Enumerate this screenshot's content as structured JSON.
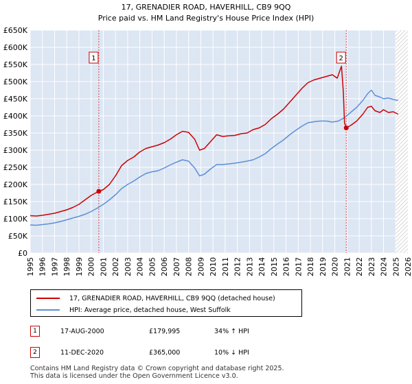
{
  "chart_data": {
    "type": "line",
    "title": "17, GRENADIER ROAD, HAVERHILL, CB9 9QQ",
    "subtitle": "Price paid vs. HM Land Registry's House Price Index (HPI)",
    "xlim": [
      1995,
      2026
    ],
    "ylim": [
      0,
      650000
    ],
    "y_ticks": [
      0,
      50000,
      100000,
      150000,
      200000,
      250000,
      300000,
      350000,
      400000,
      450000,
      500000,
      550000,
      600000,
      650000
    ],
    "y_tick_labels": [
      "£0",
      "£50K",
      "£100K",
      "£150K",
      "£200K",
      "£250K",
      "£300K",
      "£350K",
      "£400K",
      "£450K",
      "£500K",
      "£550K",
      "£600K",
      "£650K"
    ],
    "x_ticks": [
      1995,
      1996,
      1997,
      1998,
      1999,
      2000,
      2001,
      2002,
      2003,
      2004,
      2005,
      2006,
      2007,
      2008,
      2009,
      2010,
      2011,
      2012,
      2013,
      2014,
      2015,
      2016,
      2017,
      2018,
      2019,
      2020,
      2021,
      2022,
      2023,
      2024,
      2025,
      2026
    ],
    "x_tick_labels": [
      "1995",
      "1996",
      "1997",
      "1998",
      "1999",
      "2000",
      "2001",
      "2002",
      "2003",
      "2004",
      "2005",
      "2006",
      "2007",
      "2008",
      "2009",
      "2010",
      "2011",
      "2012",
      "2013",
      "2014",
      "2015",
      "2016",
      "2017",
      "2018",
      "2019",
      "2020",
      "2021",
      "2022",
      "2023",
      "2024",
      "2025",
      "2026"
    ],
    "forecast_start": 2025.0,
    "series": [
      {
        "name": "17, GRENADIER ROAD, HAVERHILL, CB9 9QQ (detached house)",
        "color": "#cc0000",
        "points": [
          [
            1995.0,
            109000
          ],
          [
            1995.5,
            108000
          ],
          [
            1996.0,
            110000
          ],
          [
            1996.5,
            113000
          ],
          [
            1997.0,
            116000
          ],
          [
            1997.5,
            121000
          ],
          [
            1998.0,
            126000
          ],
          [
            1998.5,
            133000
          ],
          [
            1999.0,
            142000
          ],
          [
            1999.5,
            155000
          ],
          [
            2000.0,
            168000
          ],
          [
            2000.63,
            179995
          ],
          [
            2001.0,
            185000
          ],
          [
            2001.5,
            200000
          ],
          [
            2002.0,
            225000
          ],
          [
            2002.5,
            255000
          ],
          [
            2003.0,
            270000
          ],
          [
            2003.5,
            280000
          ],
          [
            2004.0,
            295000
          ],
          [
            2004.5,
            305000
          ],
          [
            2005.0,
            310000
          ],
          [
            2005.5,
            315000
          ],
          [
            2006.0,
            322000
          ],
          [
            2006.5,
            332000
          ],
          [
            2007.0,
            345000
          ],
          [
            2007.5,
            355000
          ],
          [
            2008.0,
            352000
          ],
          [
            2008.5,
            332000
          ],
          [
            2008.9,
            300000
          ],
          [
            2009.3,
            305000
          ],
          [
            2009.8,
            325000
          ],
          [
            2010.3,
            345000
          ],
          [
            2010.8,
            340000
          ],
          [
            2011.3,
            342000
          ],
          [
            2011.8,
            343000
          ],
          [
            2012.3,
            348000
          ],
          [
            2012.8,
            350000
          ],
          [
            2013.3,
            360000
          ],
          [
            2013.8,
            365000
          ],
          [
            2014.3,
            375000
          ],
          [
            2014.8,
            392000
          ],
          [
            2015.3,
            405000
          ],
          [
            2015.8,
            420000
          ],
          [
            2016.3,
            440000
          ],
          [
            2016.8,
            460000
          ],
          [
            2017.3,
            480000
          ],
          [
            2017.8,
            497000
          ],
          [
            2018.3,
            505000
          ],
          [
            2018.8,
            510000
          ],
          [
            2019.3,
            515000
          ],
          [
            2019.8,
            520000
          ],
          [
            2020.2,
            510000
          ],
          [
            2020.45,
            535000
          ],
          [
            2020.55,
            545000
          ],
          [
            2020.7,
            470000
          ],
          [
            2020.8,
            380000
          ],
          [
            2020.94,
            365000
          ],
          [
            2021.3,
            372000
          ],
          [
            2021.8,
            385000
          ],
          [
            2022.3,
            405000
          ],
          [
            2022.7,
            425000
          ],
          [
            2023.0,
            428000
          ],
          [
            2023.3,
            415000
          ],
          [
            2023.7,
            410000
          ],
          [
            2024.0,
            418000
          ],
          [
            2024.4,
            410000
          ],
          [
            2024.8,
            412000
          ],
          [
            2025.2,
            405000
          ]
        ]
      },
      {
        "name": "HPI: Average price, detached house, West Suffolk",
        "color": "#5b8fd6",
        "points": [
          [
            1995.0,
            82000
          ],
          [
            1995.5,
            81000
          ],
          [
            1996.0,
            83000
          ],
          [
            1996.5,
            85000
          ],
          [
            1997.0,
            88000
          ],
          [
            1997.5,
            92000
          ],
          [
            1998.0,
            97000
          ],
          [
            1998.5,
            102000
          ],
          [
            1999.0,
            107000
          ],
          [
            1999.5,
            113000
          ],
          [
            2000.0,
            121000
          ],
          [
            2000.5,
            131000
          ],
          [
            2001.0,
            142000
          ],
          [
            2001.5,
            155000
          ],
          [
            2002.0,
            170000
          ],
          [
            2002.5,
            188000
          ],
          [
            2003.0,
            200000
          ],
          [
            2003.5,
            210000
          ],
          [
            2004.0,
            222000
          ],
          [
            2004.5,
            232000
          ],
          [
            2005.0,
            237000
          ],
          [
            2005.5,
            240000
          ],
          [
            2006.0,
            248000
          ],
          [
            2006.5,
            257000
          ],
          [
            2007.0,
            265000
          ],
          [
            2007.5,
            272000
          ],
          [
            2008.0,
            268000
          ],
          [
            2008.5,
            248000
          ],
          [
            2008.9,
            225000
          ],
          [
            2009.3,
            230000
          ],
          [
            2009.8,
            245000
          ],
          [
            2010.3,
            258000
          ],
          [
            2010.8,
            258000
          ],
          [
            2011.3,
            260000
          ],
          [
            2011.8,
            262000
          ],
          [
            2012.3,
            265000
          ],
          [
            2012.8,
            268000
          ],
          [
            2013.3,
            272000
          ],
          [
            2013.8,
            280000
          ],
          [
            2014.3,
            290000
          ],
          [
            2014.8,
            305000
          ],
          [
            2015.3,
            318000
          ],
          [
            2015.8,
            330000
          ],
          [
            2016.3,
            345000
          ],
          [
            2016.8,
            358000
          ],
          [
            2017.3,
            370000
          ],
          [
            2017.8,
            380000
          ],
          [
            2018.3,
            383000
          ],
          [
            2018.8,
            385000
          ],
          [
            2019.3,
            385000
          ],
          [
            2019.8,
            382000
          ],
          [
            2020.3,
            385000
          ],
          [
            2020.8,
            395000
          ],
          [
            2021.3,
            410000
          ],
          [
            2021.8,
            425000
          ],
          [
            2022.3,
            445000
          ],
          [
            2022.7,
            465000
          ],
          [
            2023.0,
            475000
          ],
          [
            2023.3,
            460000
          ],
          [
            2023.7,
            455000
          ],
          [
            2024.0,
            450000
          ],
          [
            2024.4,
            452000
          ],
          [
            2024.8,
            448000
          ],
          [
            2025.2,
            445000
          ]
        ]
      }
    ],
    "sales": [
      {
        "label": "1",
        "x": 2000.63,
        "y": 179995,
        "badge_y": 570000
      },
      {
        "label": "2",
        "x": 2020.94,
        "y": 365000,
        "badge_y": 570000
      }
    ]
  },
  "legend": {
    "property": "17, GRENADIER ROAD, HAVERHILL, CB9 9QQ (detached house)",
    "hpi": "HPI: Average price, detached house, West Suffolk"
  },
  "sales_table": [
    {
      "num": "1",
      "date": "17-AUG-2000",
      "price": "£179,995",
      "hpi": "34% ↑ HPI"
    },
    {
      "num": "2",
      "date": "11-DEC-2020",
      "price": "£365,000",
      "hpi": "10% ↓ HPI"
    }
  ],
  "footer": {
    "line1": "Contains HM Land Registry data © Crown copyright and database right 2025.",
    "line2": "This data is licensed under the Open Government Licence v3.0."
  },
  "colors": {
    "property": "#cc0000",
    "hpi": "#5b8fd6",
    "plot_bg": "#dde6f3",
    "grid": "#ffffff"
  }
}
